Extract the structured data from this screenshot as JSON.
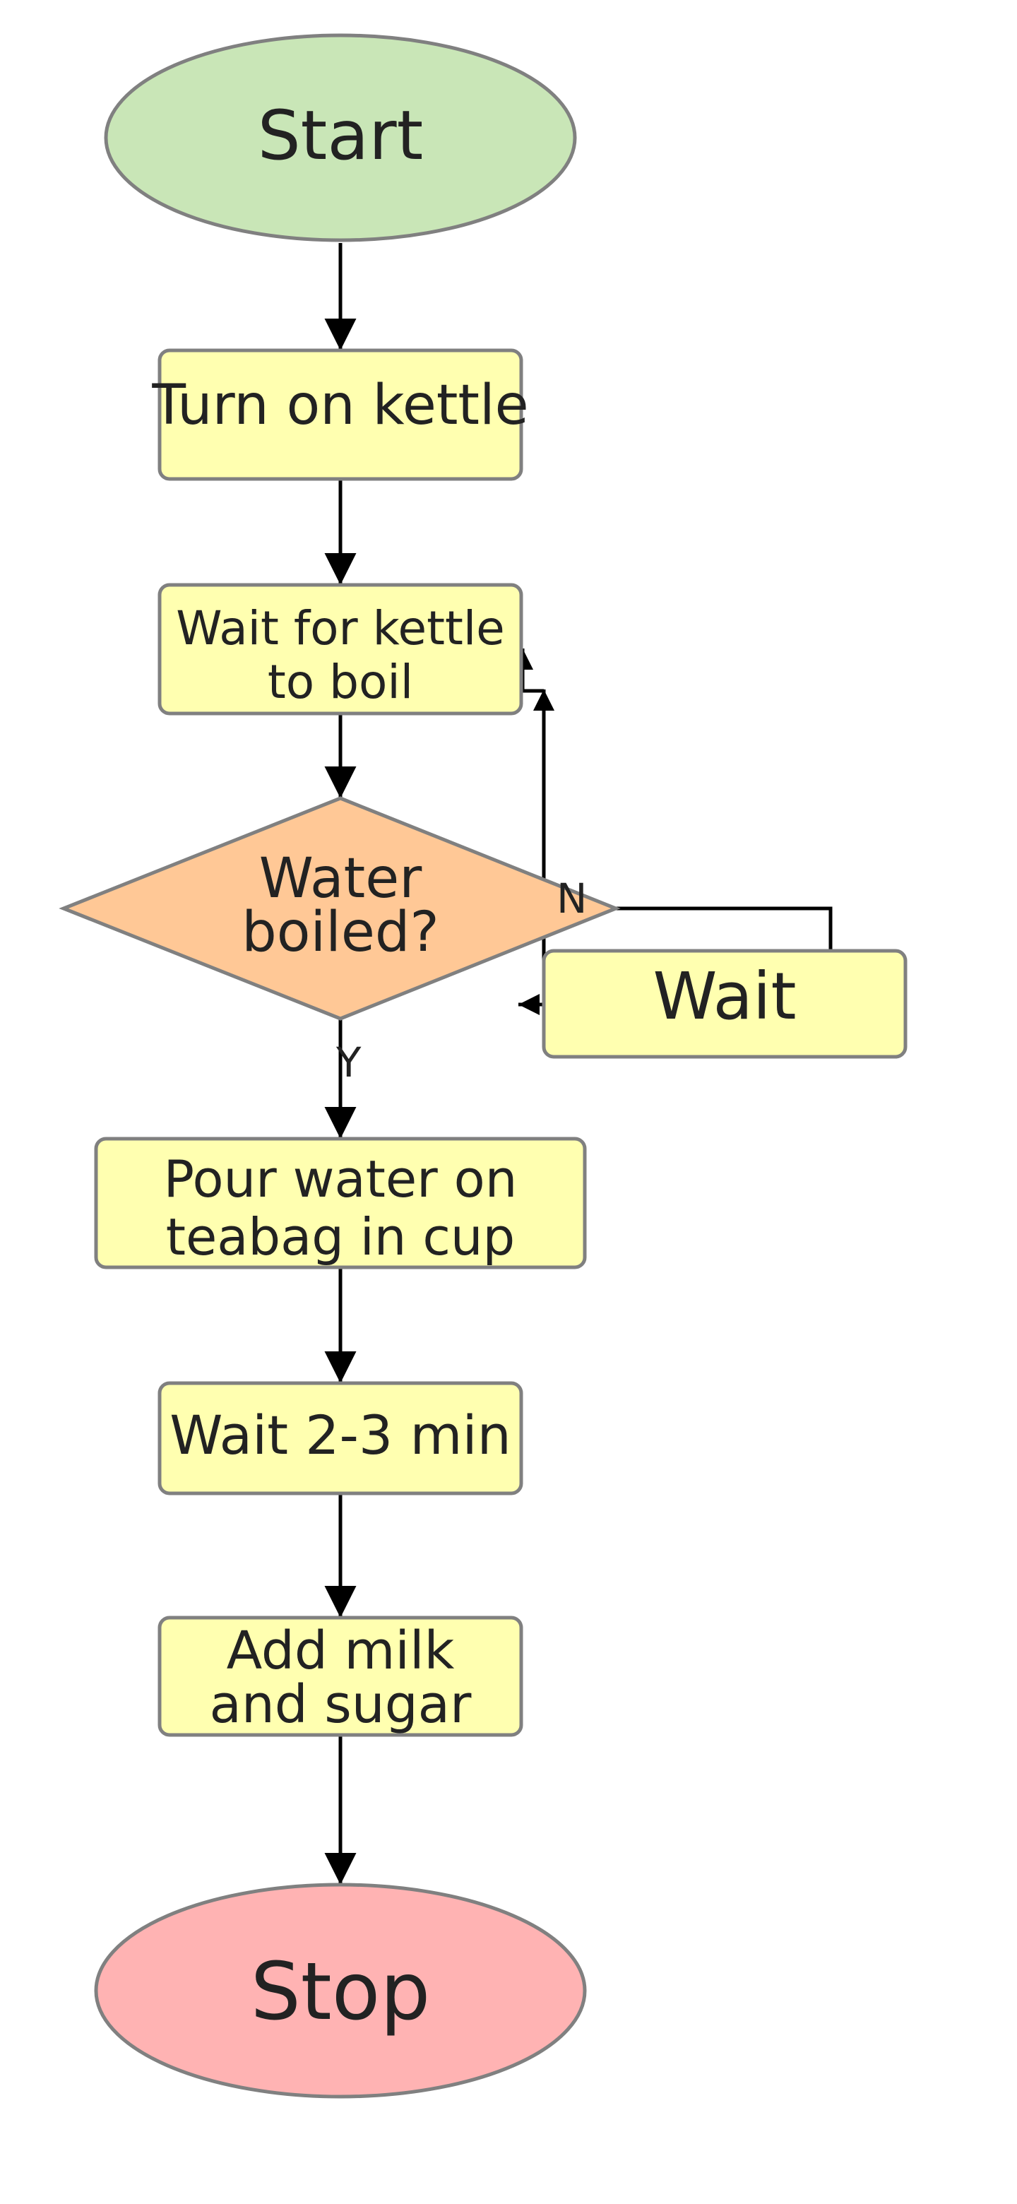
{
  "diagram": {
    "nodes": {
      "start": {
        "lines": [
          "Start"
        ],
        "fill": "#c9e6b7"
      },
      "turn_on_kettle": {
        "lines": [
          "Turn on kettle"
        ],
        "fill": "#ffffb0"
      },
      "wait_for_kettle": {
        "lines": [
          "Wait for kettle",
          "to boil"
        ],
        "fill": "#ffffb0"
      },
      "water_boiled": {
        "lines": [
          "Water",
          "boiled?"
        ],
        "fill": "#ffc896"
      },
      "wait": {
        "lines": [
          "Wait"
        ],
        "fill": "#ffffb0"
      },
      "pour_water": {
        "lines": [
          "Pour water on",
          "teabag in cup"
        ],
        "fill": "#ffffb0"
      },
      "wait_minutes": {
        "lines": [
          "Wait 2-3 min"
        ],
        "fill": "#ffffb0"
      },
      "add_milk": {
        "lines": [
          "Add milk",
          "and sugar"
        ],
        "fill": "#ffffb0"
      },
      "stop": {
        "lines": [
          "Stop"
        ],
        "fill": "#ffb3b3"
      }
    },
    "edge_labels": {
      "no": "N",
      "yes": "Y"
    },
    "colors": {
      "border": "#808080",
      "edge": "#000000",
      "text": "#222222"
    }
  }
}
